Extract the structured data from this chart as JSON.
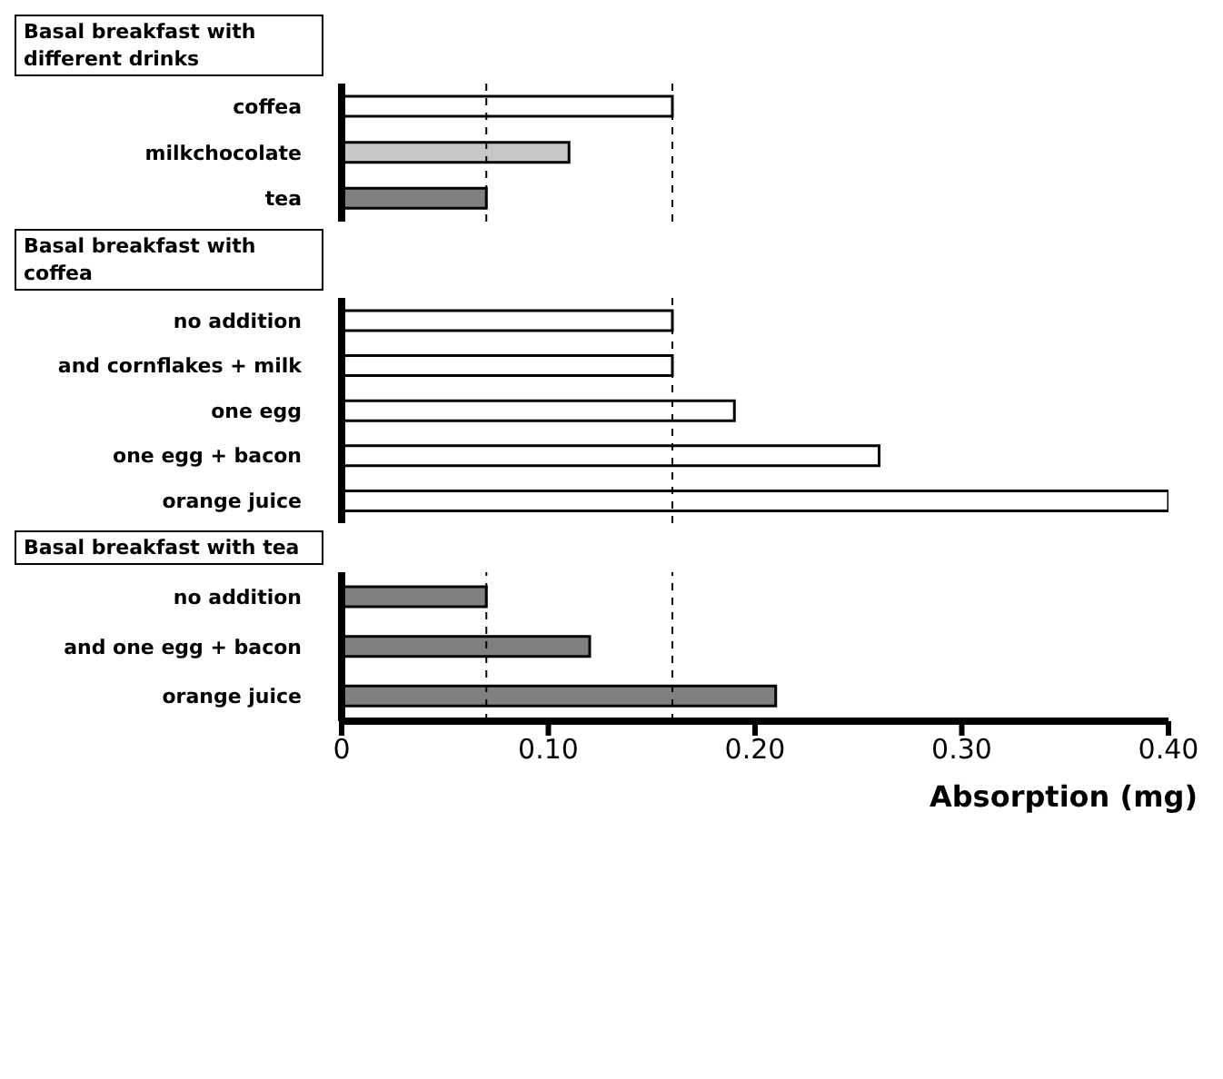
{
  "chart_data": [
    {
      "type": "bar",
      "orientation": "horizontal",
      "title": "Basal breakfast with different drinks",
      "categories": [
        "coffea",
        "milkchocolate",
        "tea"
      ],
      "values": [
        0.16,
        0.11,
        0.07
      ],
      "colors": [
        "#ffffff",
        "#c8c8c8",
        "#808080"
      ],
      "xlim": [
        0,
        0.4
      ],
      "tick_labels": "y",
      "ref_lines": [
        {
          "axis": "x",
          "value": 0.07,
          "line_style": "dashed",
          "color": "#000000"
        },
        {
          "axis": "x",
          "value": 0.16,
          "line_style": "dashed",
          "color": "#000000"
        }
      ]
    },
    {
      "type": "bar",
      "orientation": "horizontal",
      "title": "Basal breakfast with coffea",
      "categories": [
        "no addition",
        "and cornflakes + milk",
        "one egg",
        "one egg + bacon",
        "orange juice"
      ],
      "values": [
        0.16,
        0.16,
        0.19,
        0.26,
        0.4
      ],
      "colors": [
        "#ffffff",
        "#ffffff",
        "#ffffff",
        "#ffffff",
        "#ffffff"
      ],
      "xlim": [
        0,
        0.4
      ],
      "tick_labels": "y",
      "ref_lines": [
        {
          "axis": "x",
          "value": 0.16,
          "line_style": "dashed",
          "color": "#000000"
        }
      ]
    },
    {
      "type": "bar",
      "orientation": "horizontal",
      "title": "Basal breakfast with tea",
      "xlabel": "Absorption (mg)",
      "categories": [
        "no addition",
        "and one egg + bacon",
        "orange juice"
      ],
      "values": [
        0.07,
        0.12,
        0.21
      ],
      "colors": [
        "#808080",
        "#808080",
        "#808080"
      ],
      "xlim": [
        0,
        0.4
      ],
      "xticks": [
        0,
        {
          "value": 0.1,
          "label": "0.10"
        },
        {
          "value": 0.2,
          "label": "0.20"
        },
        {
          "value": 0.3,
          "label": "0.30"
        },
        {
          "value": 0.4,
          "label": "0.40"
        }
      ],
      "ref_lines": [
        {
          "axis": "x",
          "value": 0.07,
          "line_style": "dashed",
          "color": "#000000"
        },
        {
          "axis": "x",
          "value": 0.16,
          "line_style": "dashed",
          "color": "#000000"
        }
      ]
    }
  ]
}
